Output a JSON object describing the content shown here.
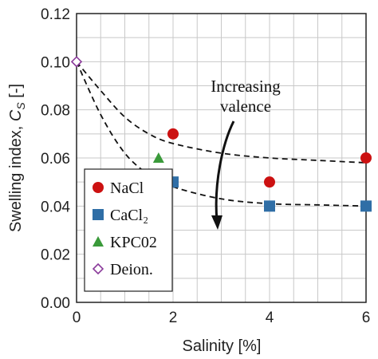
{
  "chart_data": {
    "type": "scatter",
    "xlabel": "Salinity [%]",
    "ylabel_main": "Swelling index, ",
    "ylabel_var": "C",
    "ylabel_sub": "S",
    "ylabel_unit": " [-]",
    "xlim": [
      0,
      6
    ],
    "ylim": [
      0,
      0.12
    ],
    "xticks": [
      "0",
      "2",
      "4",
      "6"
    ],
    "yticks": [
      "0.00",
      "0.02",
      "0.04",
      "0.06",
      "0.08",
      "0.10",
      "0.12"
    ],
    "grid": true,
    "legend_position": "bottom-left",
    "annotation_line1": "Increasing",
    "annotation_line2": "valence",
    "series": [
      {
        "name": "NaCl",
        "marker": "circle",
        "color": "#cc1111",
        "points": [
          [
            2,
            0.07
          ],
          [
            4,
            0.05
          ],
          [
            6,
            0.06
          ]
        ]
      },
      {
        "name": "CaCl₂",
        "marker": "square",
        "color": "#2f6ea6",
        "points": [
          [
            2,
            0.05
          ],
          [
            4,
            0.04
          ],
          [
            6,
            0.04
          ]
        ]
      },
      {
        "name": "KPC02",
        "marker": "triangle",
        "color": "#3a9a3a",
        "points": [
          [
            1.7,
            0.06
          ]
        ]
      },
      {
        "name": "Deion.",
        "marker": "diamond",
        "color": "#8a3a9a",
        "points": [
          [
            0,
            0.1
          ]
        ]
      }
    ],
    "trend_curves": [
      {
        "points": [
          [
            0,
            0.1
          ],
          [
            0.5,
            0.088
          ],
          [
            1,
            0.077
          ],
          [
            1.5,
            0.07
          ],
          [
            2,
            0.066
          ],
          [
            3,
            0.062
          ],
          [
            4,
            0.06
          ],
          [
            5,
            0.059
          ],
          [
            6,
            0.058
          ]
        ]
      },
      {
        "points": [
          [
            0,
            0.1
          ],
          [
            0.5,
            0.078
          ],
          [
            1,
            0.062
          ],
          [
            1.5,
            0.053
          ],
          [
            2,
            0.048
          ],
          [
            3,
            0.043
          ],
          [
            4,
            0.041
          ],
          [
            5,
            0.0405
          ],
          [
            6,
            0.04
          ]
        ]
      }
    ]
  }
}
